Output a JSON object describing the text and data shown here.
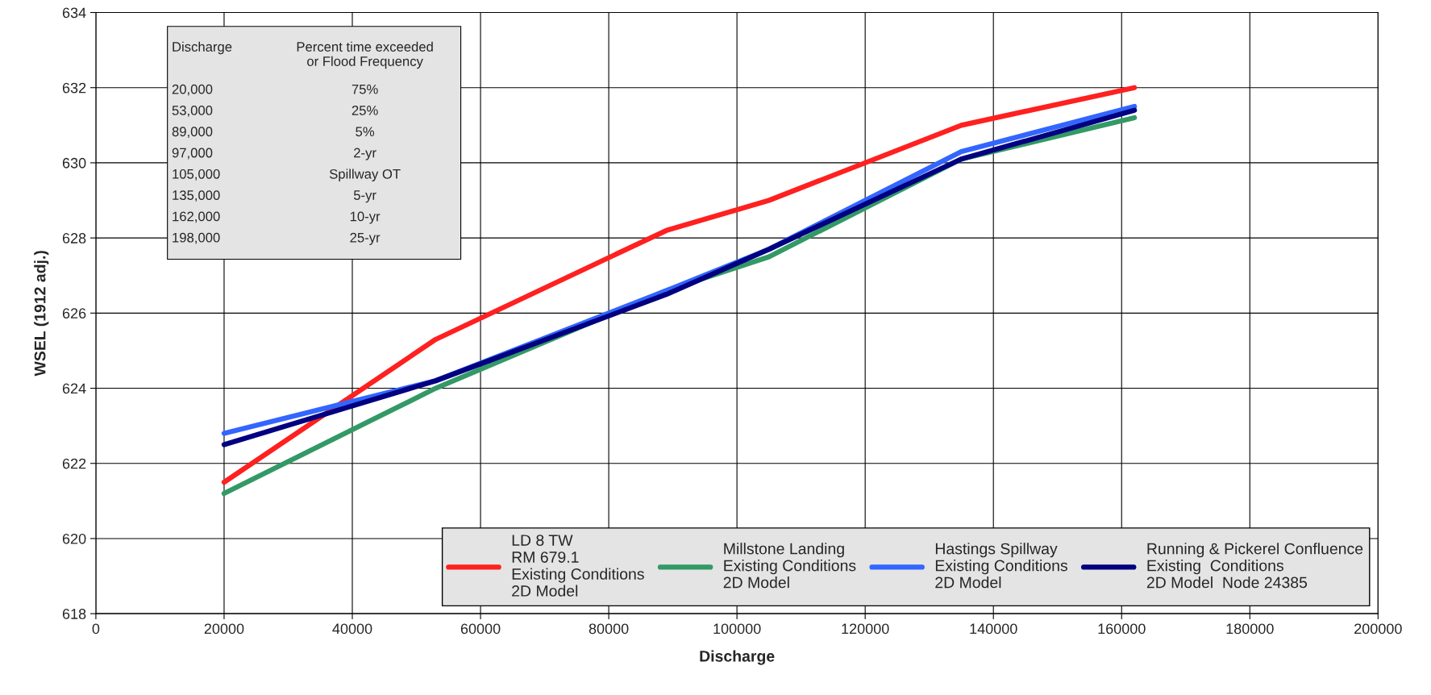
{
  "chart_data": {
    "type": "line",
    "xlabel": "Discharge",
    "ylabel": "WSEL (1912 adj.)",
    "x": [
      20000,
      53000,
      89000,
      105000,
      135000,
      162000
    ],
    "series": [
      {
        "name": "LD 8 TW\nRM 679.1\nExisting Conditions\n2D Model",
        "color": "#ff2020",
        "values": [
          621.5,
          625.3,
          628.2,
          629.0,
          631.0,
          632.0
        ]
      },
      {
        "name": "Millstone Landing\nExisting Conditions\n2D Model",
        "color": "#339966",
        "values": [
          621.2,
          624.0,
          626.6,
          627.5,
          630.1,
          631.2
        ]
      },
      {
        "name": "Hastings Spillway\nExisting Conditions\n2D Model",
        "color": "#3366ff",
        "values": [
          622.8,
          624.2,
          626.6,
          627.7,
          630.3,
          631.5
        ]
      },
      {
        "name": "Running & Pickerel Confluence\nExisting  Conditions\n2D Model  Node 24385",
        "color": "#000080",
        "values": [
          622.5,
          624.2,
          626.5,
          627.7,
          630.1,
          631.4
        ]
      }
    ],
    "xlim": [
      0,
      200000
    ],
    "xticks": [
      0,
      20000,
      40000,
      60000,
      80000,
      100000,
      120000,
      140000,
      160000,
      180000,
      200000
    ],
    "ylim": [
      618,
      634
    ],
    "yticks": [
      618,
      620,
      622,
      624,
      626,
      628,
      630,
      632,
      634
    ],
    "grid": true,
    "legend": "bottom right",
    "marker": "none",
    "line_style": "solid",
    "annotations": [
      "Discharge",
      "Percent time exceeded\nor Flood Frequency",
      "20,000",
      "75%",
      "53,000",
      "25%",
      "89,000",
      "5%",
      "97,000",
      "2-yr",
      "105,000",
      "Spillway OT",
      "135,000",
      "5-yr",
      "162,000",
      "10-yr",
      "198,000",
      "25-yr"
    ]
  }
}
